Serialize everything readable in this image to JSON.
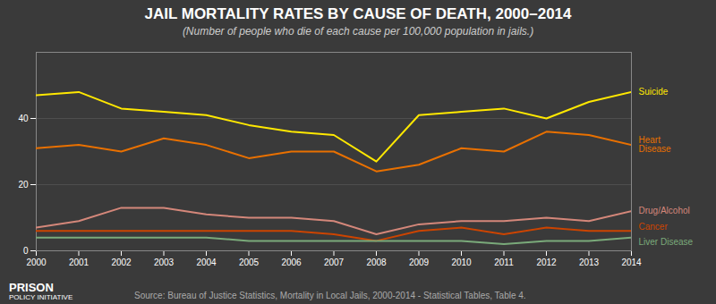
{
  "chart_data": {
    "type": "line",
    "title": "JAIL MORTALITY RATES BY CAUSE OF DEATH, 2000–2014",
    "subtitle": "(Number of people who die of each cause per 100,000 population in jails.)",
    "source": "Source: Bureau of Justice Statistics, Mortality in Local Jails, 2000-2014 - Statistical Tables, Table 4.",
    "annotations": [
      "PRISON",
      "POLICY INITIATIVE"
    ],
    "x": [
      2000,
      2001,
      2002,
      2003,
      2004,
      2005,
      2006,
      2007,
      2008,
      2009,
      2010,
      2011,
      2012,
      2013,
      2014
    ],
    "series": [
      {
        "name": "Suicide",
        "color": "#FFE800",
        "values": [
          47,
          48,
          43,
          42,
          41,
          38,
          36,
          35,
          27,
          41,
          42,
          43,
          40,
          45,
          48
        ]
      },
      {
        "name": "Heart\nDisease",
        "color": "#E87000",
        "values": [
          31,
          32,
          30,
          34,
          32,
          28,
          30,
          30,
          24,
          26,
          31,
          30,
          36,
          35,
          32
        ]
      },
      {
        "name": "Drug/Alcohol",
        "color": "#D4877A",
        "values": [
          7,
          9,
          13,
          13,
          11,
          10,
          10,
          9,
          5,
          8,
          9,
          9,
          10,
          9,
          12
        ]
      },
      {
        "name": "Cancer",
        "color": "#CC4400",
        "values": [
          6,
          6,
          6,
          6,
          6,
          6,
          6,
          5,
          3,
          6,
          7,
          5,
          7,
          6,
          6
        ]
      },
      {
        "name": "Liver Disease",
        "color": "#7AAA7A",
        "values": [
          4,
          4,
          4,
          4,
          4,
          3,
          3,
          3,
          3,
          3,
          3,
          2,
          3,
          3,
          4
        ]
      }
    ],
    "xlim": [
      2000,
      2014
    ],
    "xticks": [
      2000,
      2001,
      2002,
      2003,
      2004,
      2005,
      2006,
      2007,
      2008,
      2009,
      2010,
      2011,
      2012,
      2013,
      2014
    ],
    "ylim": [
      0,
      60
    ],
    "yticks": [
      0,
      20,
      40
    ],
    "grid": true
  }
}
